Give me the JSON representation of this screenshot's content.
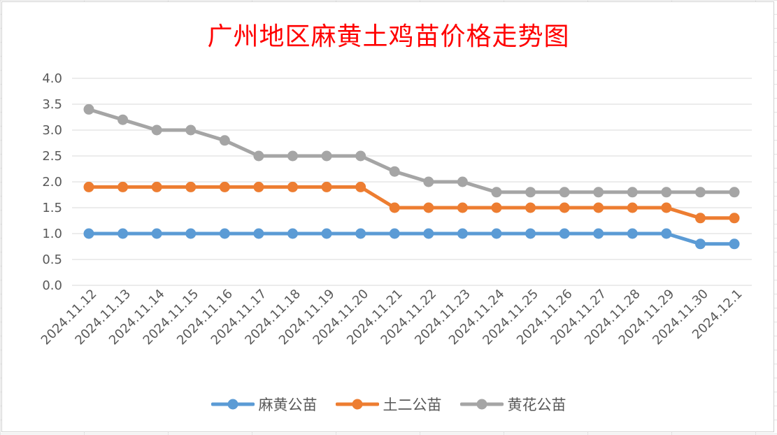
{
  "chart_data": {
    "type": "line",
    "title": "广州地区麻黄土鸡苗价格走势图",
    "xlabel": "",
    "ylabel": "",
    "categories": [
      "2024.11.12",
      "2024.11.13",
      "2024.11.14",
      "2024.11.15",
      "2024.11.16",
      "2024.11.17",
      "2024.11.18",
      "2024.11.19",
      "2024.11.20",
      "2024.11.21",
      "2024.11.22",
      "2024.11.23",
      "2024.11.24",
      "2024.11.25",
      "2024.11.26",
      "2024.11.27",
      "2024.11.28",
      "2024.11.29",
      "2024.11.30",
      "2024.12.1"
    ],
    "yticks": [
      "0.0",
      "0.5",
      "1.0",
      "1.5",
      "2.0",
      "2.5",
      "3.0",
      "3.5",
      "4.0"
    ],
    "ylim": [
      0,
      4
    ],
    "grid": true,
    "legend_position": "bottom",
    "series": [
      {
        "name": "麻黄公苗",
        "color": "#5b9bd5",
        "values": [
          1.0,
          1.0,
          1.0,
          1.0,
          1.0,
          1.0,
          1.0,
          1.0,
          1.0,
          1.0,
          1.0,
          1.0,
          1.0,
          1.0,
          1.0,
          1.0,
          1.0,
          1.0,
          0.8,
          0.8
        ]
      },
      {
        "name": "土二公苗",
        "color": "#ed7d31",
        "values": [
          1.9,
          1.9,
          1.9,
          1.9,
          1.9,
          1.9,
          1.9,
          1.9,
          1.9,
          1.5,
          1.5,
          1.5,
          1.5,
          1.5,
          1.5,
          1.5,
          1.5,
          1.5,
          1.3,
          1.3
        ]
      },
      {
        "name": "黄花公苗",
        "color": "#a5a5a5",
        "values": [
          3.4,
          3.2,
          3.0,
          3.0,
          2.8,
          2.5,
          2.5,
          2.5,
          2.5,
          2.2,
          2.0,
          2.0,
          1.8,
          1.8,
          1.8,
          1.8,
          1.8,
          1.8,
          1.8,
          1.8
        ]
      }
    ]
  }
}
